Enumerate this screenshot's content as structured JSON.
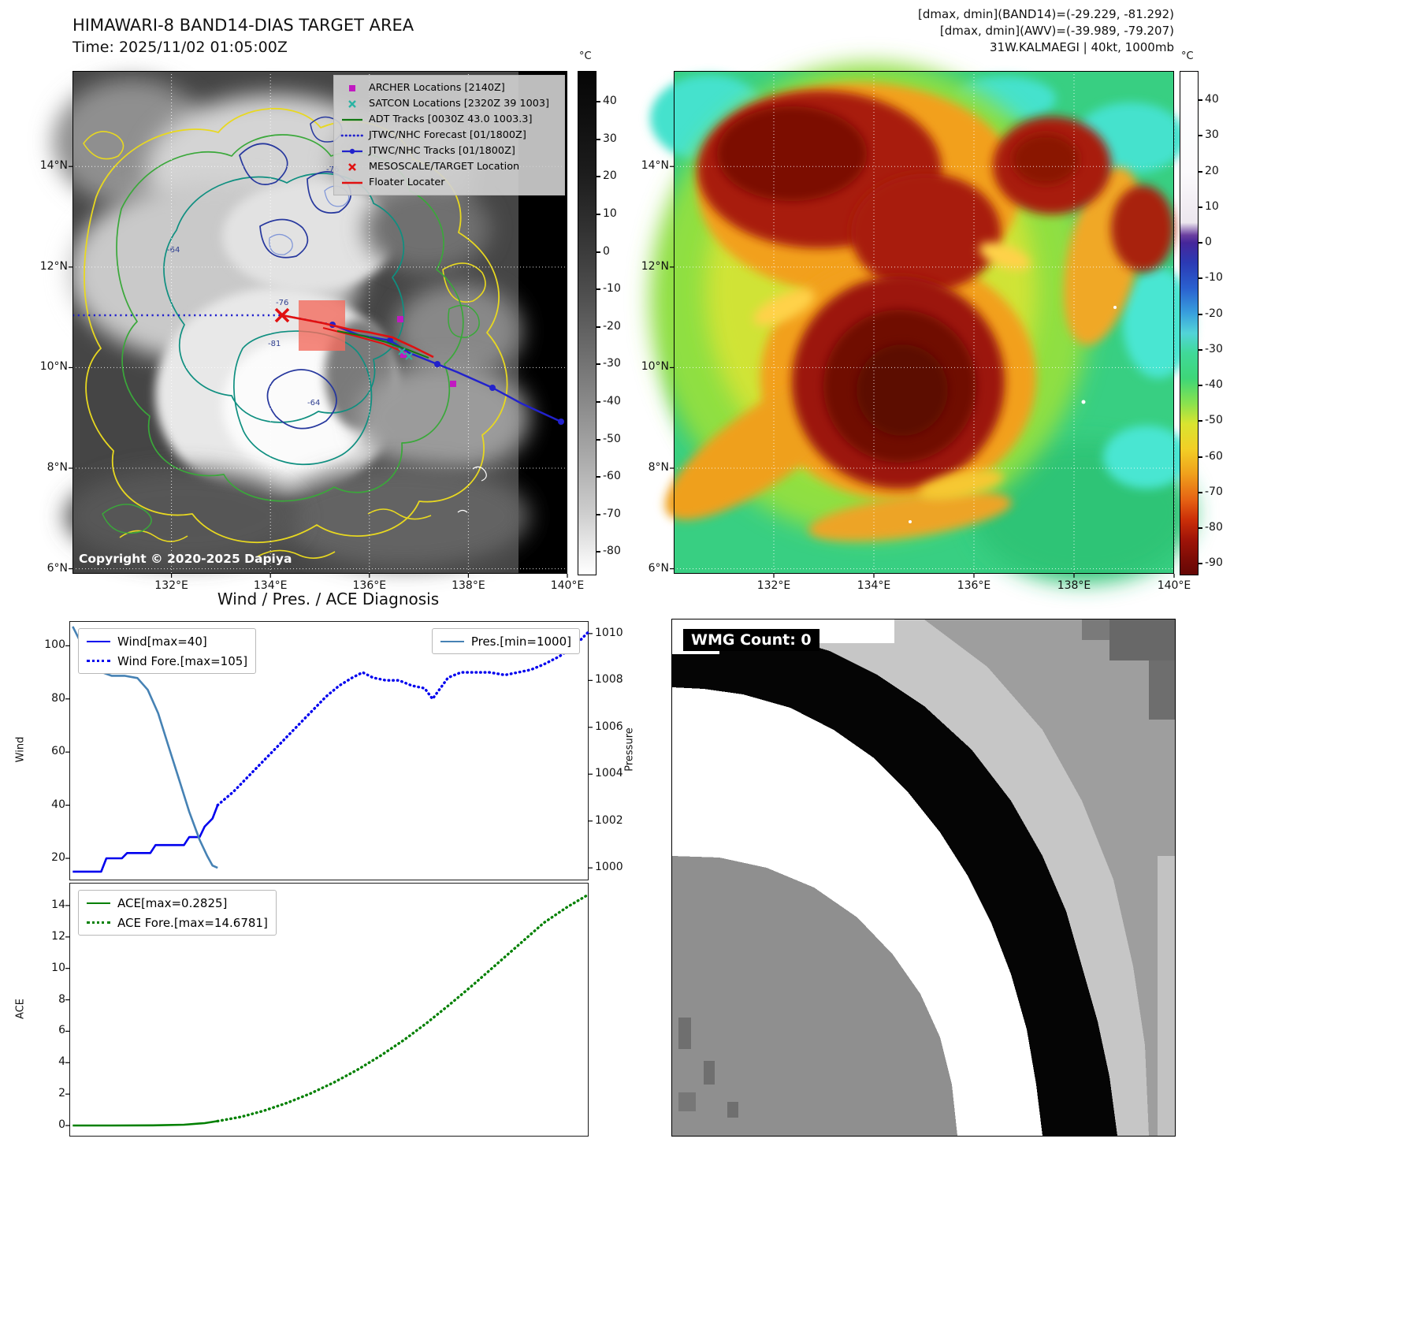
{
  "band14_panel": {
    "title": "HIMAWARI-8 BAND14-DIAS TARGET AREA",
    "subtitle": "Time: 2025/11/02 01:05:00Z",
    "copyright": "Copyright © 2020-2025 Dapiya",
    "legend": [
      {
        "marker": "magenta-square",
        "label": "ARCHER Locations [2140Z]"
      },
      {
        "marker": "teal-x",
        "label": "SATCON Locations [2320Z 39 1003]"
      },
      {
        "marker": "green-line",
        "label": "ADT Tracks [0030Z 43.0 1003.3]"
      },
      {
        "marker": "blue-dotted-line",
        "label": "JTWC/NHC Forecast [01/1800Z]"
      },
      {
        "marker": "blue-line-dot",
        "label": "JTWC/NHC Tracks [01/1800Z]"
      },
      {
        "marker": "red-x",
        "label": "MESOSCALE/TARGET Location"
      },
      {
        "marker": "red-line",
        "label": "Floater Locater"
      }
    ],
    "contour_labels": [
      "-64",
      "-76",
      "-81",
      "-64",
      "-76"
    ],
    "colorbar": {
      "unit": "°C",
      "vmax": 48,
      "vmin": -86,
      "ticks": [
        40,
        30,
        20,
        10,
        0,
        -10,
        -20,
        -30,
        -40,
        -50,
        -60,
        -70,
        -80
      ]
    }
  },
  "awv_panel": {
    "header_lines": [
      "[dmax, dmin](BAND14)=(-29.229, -81.292)",
      "[dmax, dmin](AWV)=(-39.989, -79.207)",
      "31W.KALMAEGI | 40kt, 1000mb"
    ],
    "colorbar": {
      "unit": "°C",
      "vmax": 48,
      "vmin": -93,
      "ticks": [
        40,
        30,
        20,
        10,
        0,
        -10,
        -20,
        -30,
        -40,
        -50,
        -60,
        -70,
        -80,
        -90
      ]
    }
  },
  "map_axes": {
    "lon_labels": [
      "132°E",
      "134°E",
      "136°E",
      "138°E",
      "140°E"
    ],
    "lon_fracs": [
      0.2,
      0.4,
      0.6,
      0.8,
      1.0
    ],
    "lat_labels": [
      "14°N",
      "12°N",
      "10°N",
      "8°N",
      "6°N"
    ],
    "lat_fracs": [
      0.19,
      0.39,
      0.59,
      0.79,
      0.99
    ]
  },
  "wmg_panel": {
    "label": "WMG Count: 0"
  },
  "chart_data": [
    {
      "type": "line",
      "title": "Wind / Pres. / ACE Diagnosis",
      "ylabel_left": "Wind",
      "ylabel_right": "Pressure",
      "ylim_left": [
        12,
        109
      ],
      "ylim_right": [
        999.5,
        1010.5
      ],
      "yticks_left": [
        20,
        40,
        60,
        80,
        100
      ],
      "yticks_right": [
        1000,
        1002,
        1004,
        1006,
        1008,
        1010
      ],
      "xlim": [
        0,
        1
      ],
      "grid": false,
      "series": [
        {
          "name": "Wind[max=40]",
          "axis": "left",
          "style": "solid",
          "color": "#0000ee",
          "x": [
            0.005,
            0.06,
            0.07,
            0.1,
            0.11,
            0.155,
            0.165,
            0.22,
            0.23,
            0.25,
            0.26,
            0.275,
            0.285
          ],
          "y": [
            15,
            15,
            20,
            20,
            22,
            22,
            25,
            25,
            28,
            28,
            32,
            35,
            40
          ]
        },
        {
          "name": "Wind Fore.[max=105]",
          "axis": "left",
          "style": "dotted",
          "color": "#0000ee",
          "x": [
            0.285,
            0.315,
            0.345,
            0.375,
            0.405,
            0.435,
            0.465,
            0.495,
            0.52,
            0.545,
            0.565,
            0.585,
            0.61,
            0.635,
            0.66,
            0.685,
            0.7,
            0.715,
            0.73,
            0.755,
            0.78,
            0.81,
            0.84,
            0.865,
            0.89,
            0.915,
            0.945,
            0.975,
            1.0
          ],
          "y": [
            40,
            45,
            51,
            57,
            63,
            69,
            75,
            81,
            85,
            88,
            90,
            88,
            87,
            87,
            85,
            84,
            80,
            84,
            88,
            90,
            90,
            90,
            89,
            90,
            91,
            93,
            96,
            100,
            105
          ]
        },
        {
          "name": "Pres.[min=1000]",
          "axis": "right",
          "style": "solid",
          "color": "#4682b4",
          "x": [
            0.005,
            0.03,
            0.055,
            0.08,
            0.105,
            0.13,
            0.15,
            0.17,
            0.19,
            0.21,
            0.23,
            0.25,
            0.265,
            0.275,
            0.285
          ],
          "y": [
            1010.3,
            1009.2,
            1008.4,
            1008.2,
            1008.2,
            1008.1,
            1007.6,
            1006.6,
            1005.2,
            1003.8,
            1002.4,
            1001.2,
            1000.5,
            1000.1,
            1000.0
          ]
        }
      ]
    },
    {
      "type": "line",
      "title": "",
      "ylabel_left": "ACE",
      "ylim_left": [
        -0.65,
        15.4
      ],
      "yticks_left": [
        0,
        2,
        4,
        6,
        8,
        10,
        12,
        14
      ],
      "xlim": [
        0,
        1
      ],
      "grid": false,
      "series": [
        {
          "name": "ACE[max=0.2825]",
          "axis": "left",
          "style": "solid",
          "color": "#008000",
          "x": [
            0.005,
            0.08,
            0.16,
            0.22,
            0.26,
            0.285
          ],
          "y": [
            0.0,
            0.0,
            0.01,
            0.05,
            0.15,
            0.2825
          ]
        },
        {
          "name": "ACE Fore.[max=14.6781]",
          "axis": "left",
          "style": "dotted",
          "color": "#008000",
          "x": [
            0.285,
            0.33,
            0.375,
            0.42,
            0.465,
            0.51,
            0.555,
            0.6,
            0.645,
            0.69,
            0.735,
            0.78,
            0.825,
            0.87,
            0.915,
            0.96,
            1.0
          ],
          "y": [
            0.2825,
            0.55,
            0.95,
            1.45,
            2.05,
            2.75,
            3.55,
            4.45,
            5.45,
            6.55,
            7.75,
            9.0,
            10.3,
            11.6,
            12.9,
            13.9,
            14.6781
          ]
        }
      ]
    }
  ]
}
